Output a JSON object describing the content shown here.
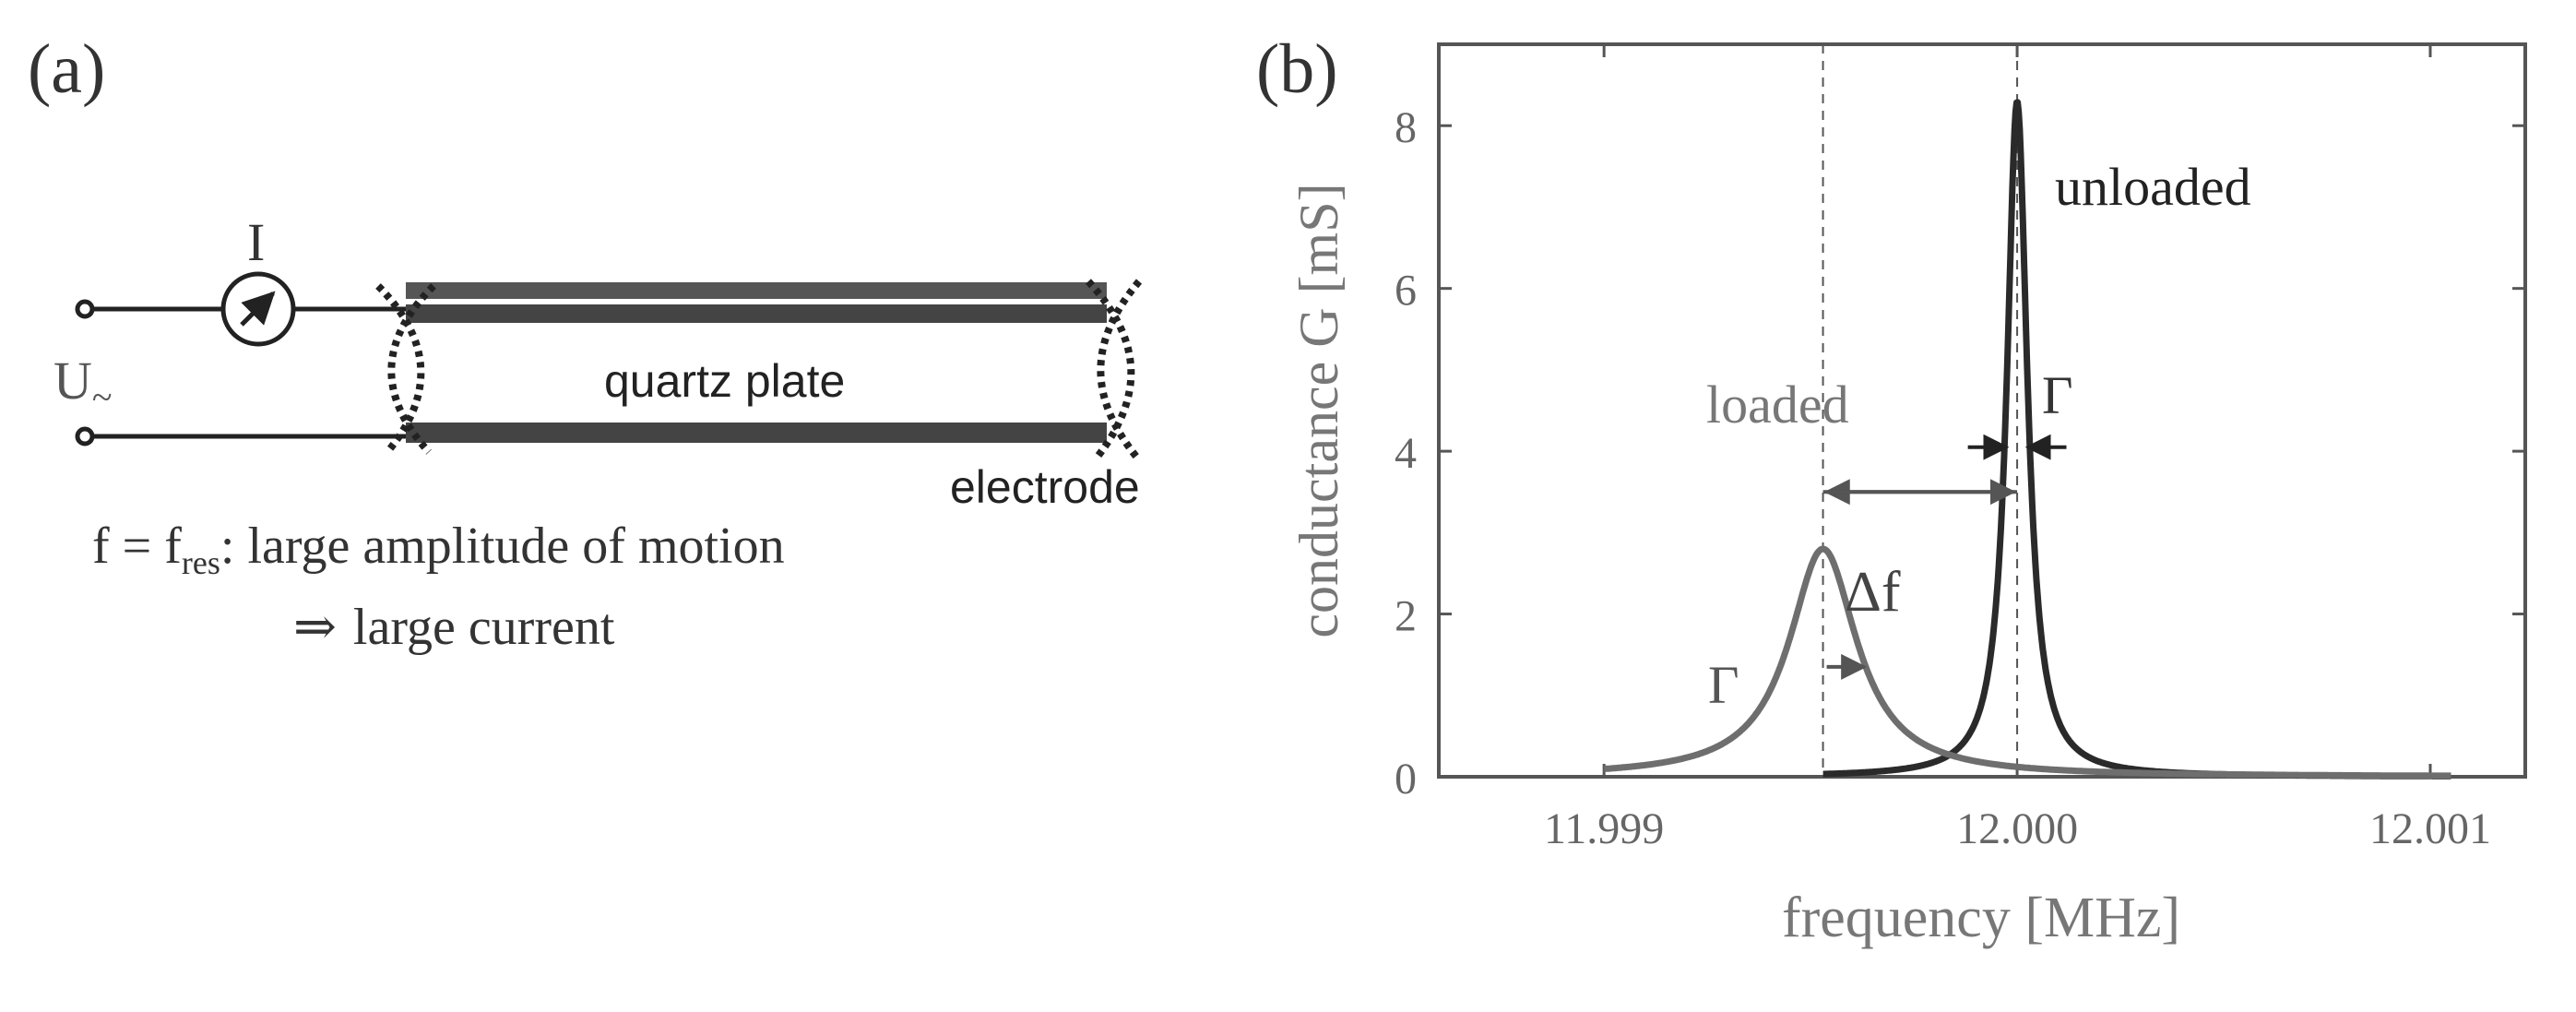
{
  "panel_a": {
    "label": "(a)",
    "current_symbol": "I",
    "voltage_symbol": "U",
    "voltage_subscript": "~",
    "plate_label": "quartz plate",
    "electrode_label": "electrode",
    "condition_f": "f = f",
    "condition_sub": "res",
    "condition_colon": ":",
    "condition_text": "large amplitude of motion",
    "result_arrow": "⇒",
    "result_text": "large current"
  },
  "panel_b": {
    "label": "(b)",
    "unloaded_label": "unloaded",
    "loaded_label": "loaded",
    "gamma_symbol": "Γ",
    "delta_f_label": "Δf"
  },
  "chart_data": {
    "type": "line",
    "title": "",
    "xlabel": "frequency [MHz]",
    "ylabel": "conductance G [mS]",
    "xlim": [
      11.9986,
      12.00123
    ],
    "ylim": [
      0,
      9
    ],
    "xticks": [
      11.999,
      12.0,
      12.001
    ],
    "xtick_labels": [
      "11.999",
      "12.000",
      "12.001"
    ],
    "yticks": [
      0,
      2,
      4,
      6,
      8
    ],
    "ytick_labels": [
      "0",
      "2",
      "4",
      "6",
      "8"
    ],
    "grid": false,
    "series": [
      {
        "name": "unloaded",
        "color": "#2a2a2a",
        "center": 12.0,
        "peak": 8.3,
        "hwhm": 3e-05,
        "x_range": [
          11.99953,
          12.00105
        ]
      },
      {
        "name": "loaded",
        "color": "#6e6e6e",
        "center": 11.99953,
        "peak": 2.8,
        "hwhm": 0.0001,
        "x_range": [
          11.999,
          12.00105
        ]
      }
    ],
    "annotations": {
      "delta_f_mhz": 0.00047,
      "unloaded_gamma_mhz": 3e-05,
      "loaded_gamma_mhz": 0.0001
    }
  }
}
